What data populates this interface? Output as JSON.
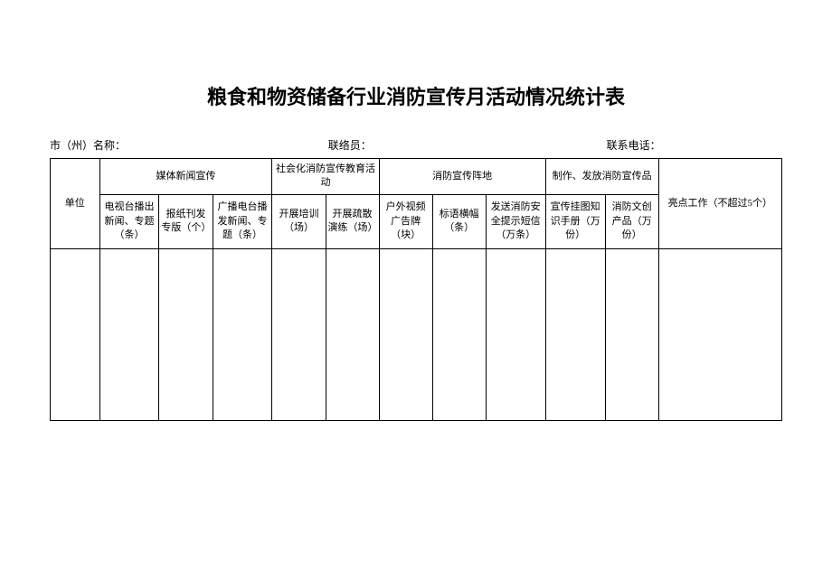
{
  "title": "粮食和物资储备行业消防宣传月活动情况统计表",
  "meta": {
    "city_label": "市（州）名称：",
    "contact_label": "联络员：",
    "phone_label": "联系电话："
  },
  "table": {
    "col_unit": "单位",
    "group1": "媒体新闻宣传",
    "group2": "社会化消防宣传教育活动",
    "group3": "消防宣传阵地",
    "group4": "制作、发放消防宣传品",
    "col_highlight": "亮点工作（不超过5个）",
    "sub": {
      "c1": "电视台播出新闻、专题（条）",
      "c2": "报纸刊发专版（个）",
      "c3": "广播电台播发新闻、专题（条）",
      "c4": "开展培训（场）",
      "c5": "开展疏散演练（场）",
      "c6": "户外视频广告牌（块）",
      "c7": "标语横幅（条）",
      "c8": "发送消防安全提示短信（万条）",
      "c9": "宣传挂图知识手册（万份）",
      "c10": "消防文创产品（万份）"
    }
  },
  "colors": {
    "background": "#ffffff",
    "border": "#000000",
    "text": "#000000"
  }
}
